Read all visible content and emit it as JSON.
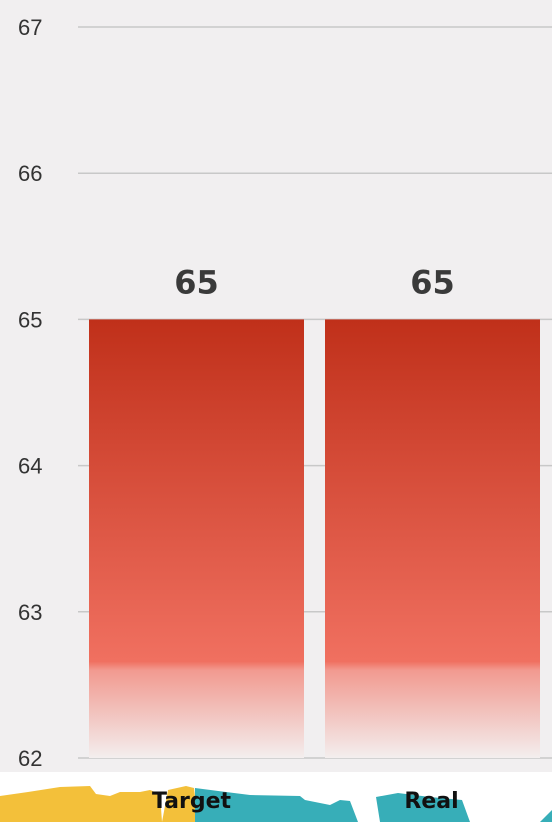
{
  "chart_data": {
    "type": "bar",
    "categories": [
      "Target",
      "Real"
    ],
    "values": [
      65,
      65
    ],
    "data_labels": [
      "65",
      "65"
    ],
    "yticks": [
      "62",
      "63",
      "64",
      "65",
      "66",
      "67"
    ],
    "ylim": [
      62,
      67
    ],
    "grid": true,
    "legend": "none",
    "colors": {
      "plot_background": "#f1eff0",
      "bar_top": "#c0301a",
      "bar_mid": "#f07060",
      "gridline": "#c8c8c8"
    }
  }
}
